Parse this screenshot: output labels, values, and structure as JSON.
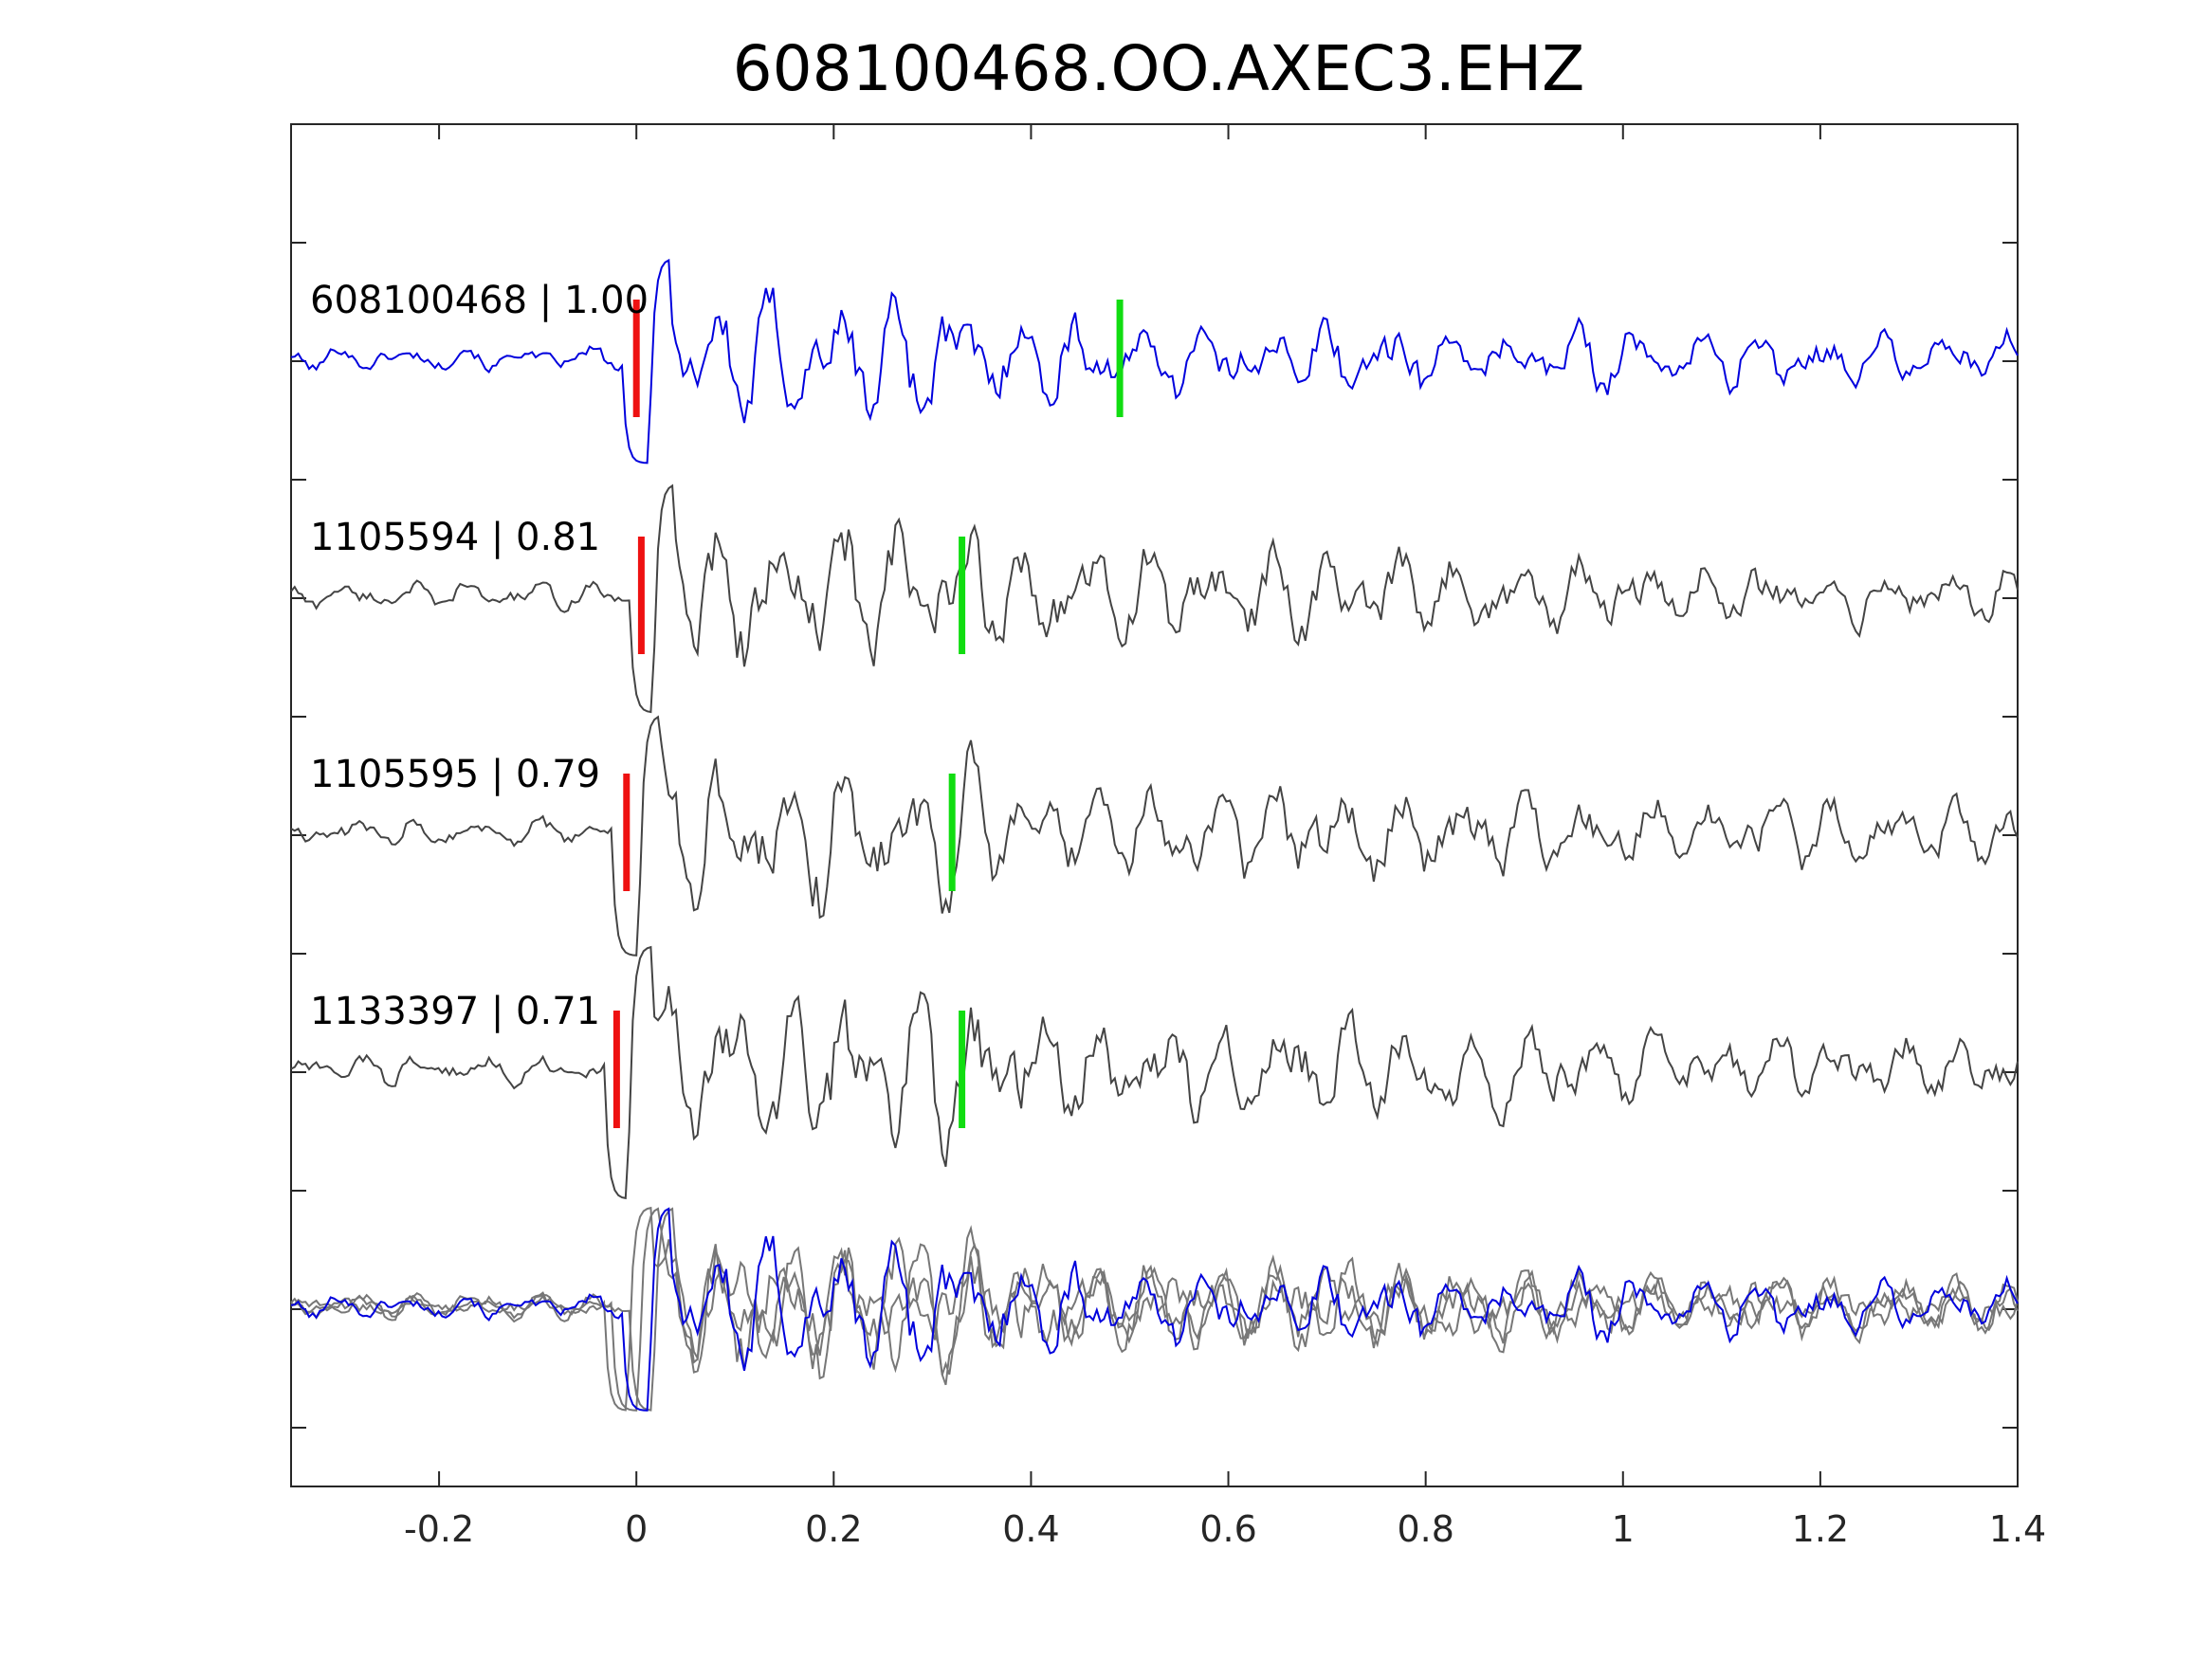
{
  "chart_data": {
    "type": "line",
    "title": "608100468.OO.AXEC3.EHZ",
    "xlabel": "",
    "ylabel": "",
    "xlim": [
      -0.35,
      1.4
    ],
    "x_ticks": [
      -0.2,
      0,
      0.2,
      0.4,
      0.6,
      0.8,
      1,
      1.2,
      1.4
    ],
    "x_tick_labels": [
      "-0.2",
      "0",
      "0.2",
      "0.4",
      "0.6",
      "0.8",
      "1",
      "1.2",
      "1.4"
    ],
    "grid": false,
    "legend": "none",
    "colors": {
      "master": "#0000dd",
      "neighbor": "#444444",
      "stack_neighbor": "#777777",
      "p_pick": "#ee1111",
      "s_pick": "#11dd11"
    },
    "series": [
      {
        "name": "608100468",
        "label": "608100468 | 1.00",
        "role": "master",
        "p_pick": 0.0,
        "s_pick": 0.49
      },
      {
        "name": "1105594",
        "label": "1105594 | 0.81",
        "role": "neighbor",
        "p_pick": 0.005,
        "s_pick": 0.33
      },
      {
        "name": "1105595",
        "label": "1105595 | 0.79",
        "role": "neighbor",
        "p_pick": -0.01,
        "s_pick": 0.32
      },
      {
        "name": "1133397",
        "label": "1133397 | 0.71",
        "role": "neighbor",
        "p_pick": -0.02,
        "s_pick": 0.33
      }
    ]
  }
}
